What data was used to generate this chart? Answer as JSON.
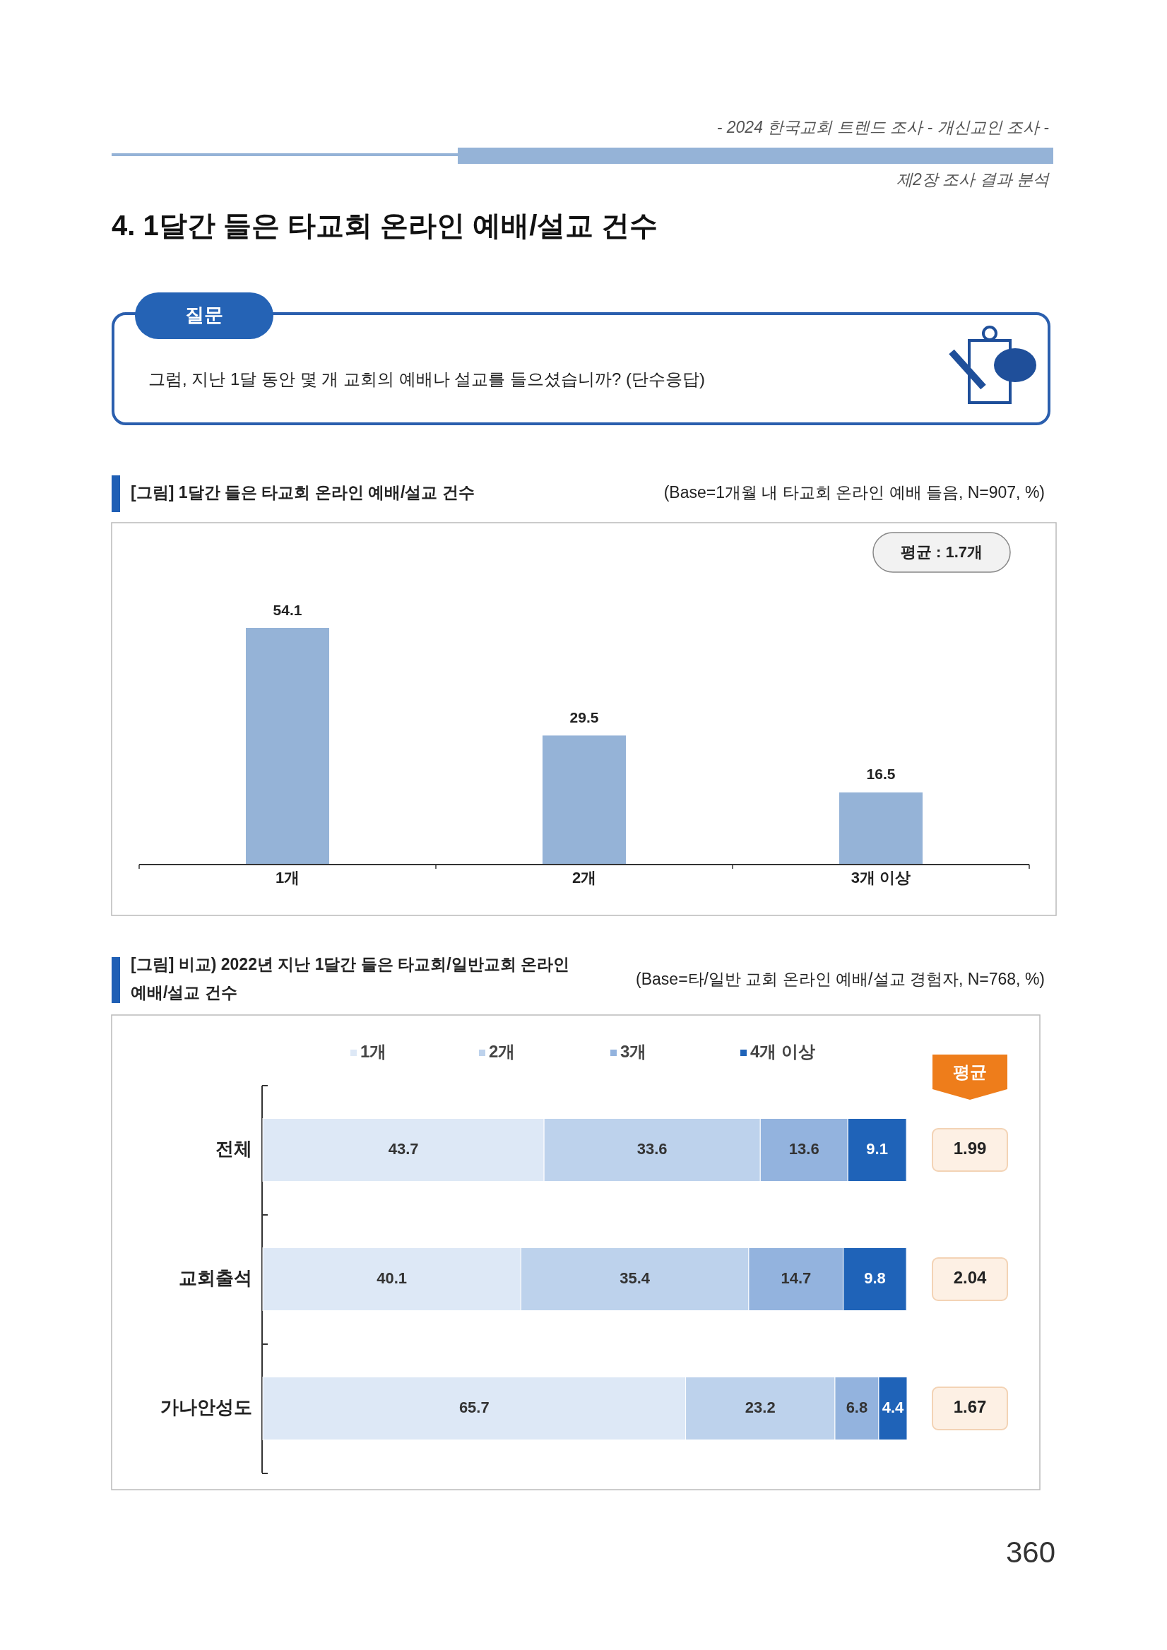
{
  "chart_data": [
    {
      "type": "other",
      "title": "4. 1달간 들은 타교회 온라인 예배/설교 건수",
      "annotations": [
        "- 2024 한국교회 트렌드 조사 - 개신교인 조사 -",
        "제2장 조사 결과 분석",
        "질문",
        "그럼, 지난 1달 동안 몇 개 교회의 예배나 설교를 들으셨습니까? (단수응답)",
        "360"
      ]
    },
    {
      "type": "bar",
      "title": "[그림] 1달간 들은 타교회 온라인 예배/설교 건수",
      "subtitle": "(Base=1개월 내 타교회 온라인 예배 들음, N=907, %)",
      "categories": [
        "1개",
        "2개",
        "3개 이상"
      ],
      "values": [
        54.1,
        29.5,
        16.5
      ],
      "color": "#95b3d7",
      "data_labels": true,
      "annotations": [
        "평균 : 1.7개"
      ]
    },
    {
      "type": "bar",
      "orientation": "horizontal",
      "stacked": true,
      "title": "[그림] 비교) 2022년 지난 1달간 들은 타교회/일반교회 온라인 예배/설교 건수",
      "subtitle": "(Base=타/일반 교회 온라인 예배/설교 경험자, N=768, %)",
      "categories": [
        "전체",
        "교회출석",
        "가나안성도"
      ],
      "xlim": [
        0,
        100.1
      ],
      "legend": "top",
      "data_labels": true,
      "series": [
        {
          "name": "1개",
          "color": "#dde8f6",
          "values": [
            43.7,
            40.1,
            65.7
          ]
        },
        {
          "name": "2개",
          "color": "#bdd2ec",
          "values": [
            33.6,
            35.4,
            23.2
          ]
        },
        {
          "name": "3개",
          "color": "#93b3de",
          "values": [
            13.6,
            14.7,
            6.8
          ]
        },
        {
          "name": "4개 이상",
          "color": "#1f63b8",
          "values": [
            9.1,
            9.8,
            4.4
          ]
        }
      ],
      "annotations": [
        "평균",
        "1.99",
        "2.04",
        "1.67"
      ]
    }
  ]
}
